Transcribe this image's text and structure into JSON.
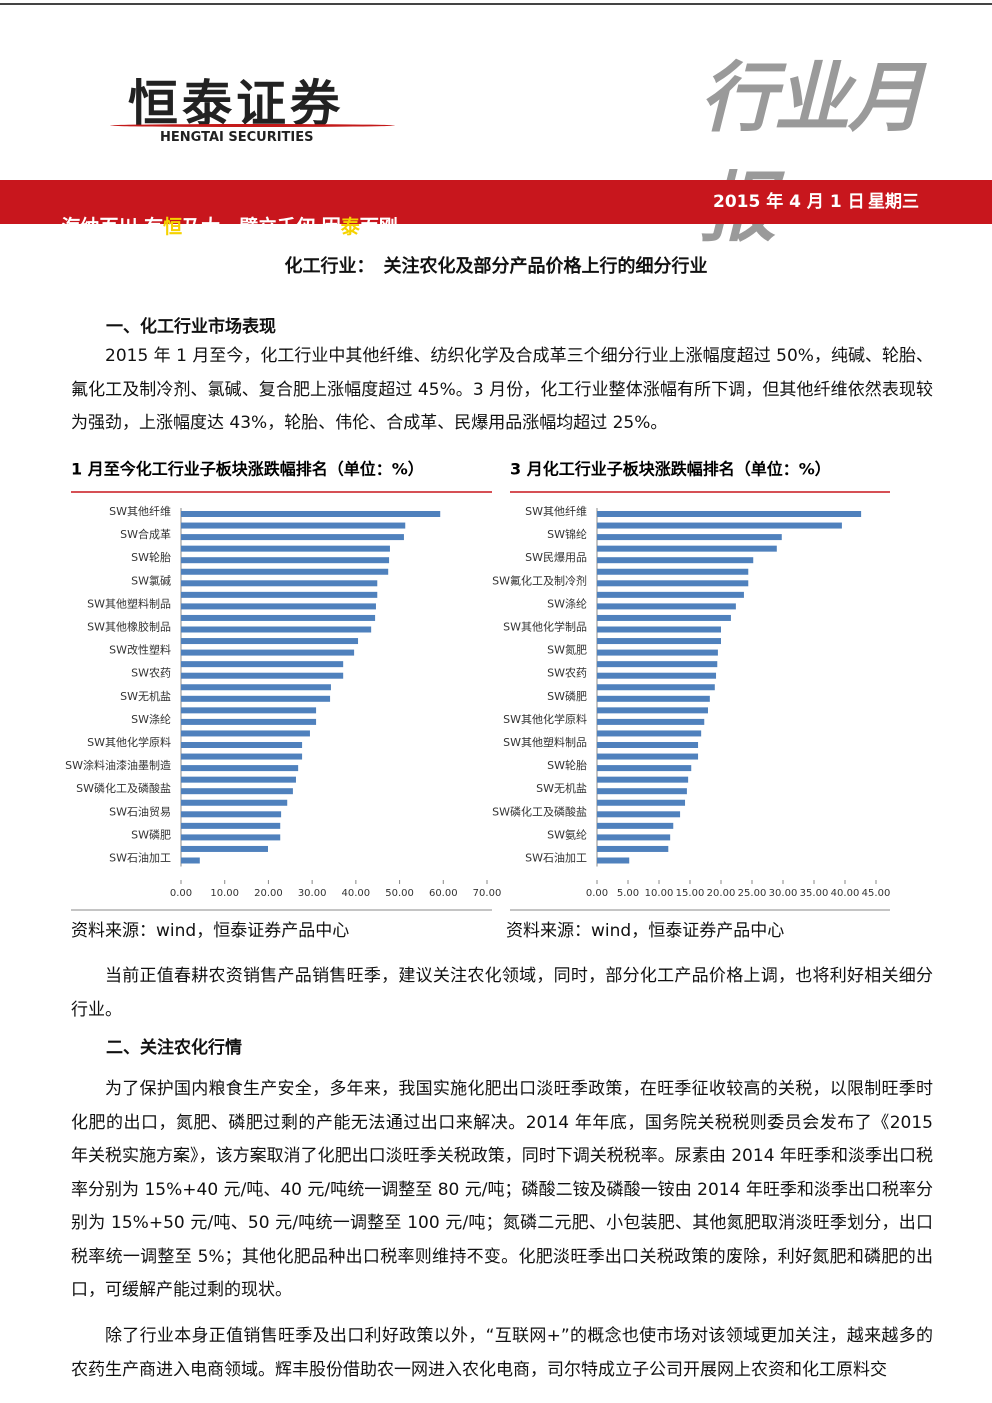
{
  "header": {
    "company": "恒泰证券",
    "company_en": "HENGTAI SECURITIES",
    "report_type": "行业月报",
    "slogan": [
      "海纳百川 有",
      "恒",
      "乃大　壁立千仞 因",
      "泰",
      "而刚"
    ],
    "date": "2015 年 4 月 1 日",
    "weekday": "星期三"
  },
  "title": "化工行业：　关注农化及部分产品价格上行的细分行业",
  "section1": {
    "heading": "一、化工行业市场表现",
    "paragraph": "2015 年 1 月至今，化工行业中其他纤维、纺织化学及合成革三个细分行业上涨幅度超过 50%，纯碱、轮胎、氟化工及制冷剂、氯碱、复合肥上涨幅度超过 45%。3 月份，化工行业整体涨幅有所下调，但其他纤维依然表现较为强劲，上涨幅度达 43%，轮胎、伟伦、合成革、民爆用品涨幅均超过 25%。",
    "paragraph2": "当前正值春耕农资销售产品销售旺季，建议关注农化领域，同时，部分化工产品价格上调，也将利好相关细分行业。"
  },
  "section2": {
    "heading": "二、关注农化行情",
    "paragraphs": [
      "为了保护国内粮食生产安全，多年来，我国实施化肥出口淡旺季政策，在旺季征收较高的关税，以限制旺季时化肥的出口，氮肥、磷肥过剩的产能无法通过出口来解决。2014 年年底，国务院关税税则委员会发布了《2015 年关税实施方案》，该方案取消了化肥出口淡旺季关税政策，同时下调关税税率。尿素由 2014 年旺季和淡季出口税率分别为 15%+40 元/吨、40 元/吨统一调整至 80 元/吨；磷酸二铵及磷酸一铵由 2014 年旺季和淡季出口税率分别为 15%+50 元/吨、50 元/吨统一调整至 100 元/吨；氮磷二元肥、小包装肥、其他氮肥取消淡旺季划分，出口税率统一调整至 5%；其他化肥品种出口税率则维持不变。化肥淡旺季出口关税政策的废除，利好氮肥和磷肥的出口，可缓解产能过剩的现状。",
      "除了行业本身正值销售旺季及出口利好政策以外，“互联网+”的概念也使市场对该领域更加关注，越来越多的农药生产商进入电商领域。辉丰股份借助农一网进入农化电商，司尔特成立子公司开展网上农资和化工原料交"
    ]
  },
  "chart_data": [
    {
      "type": "hbar",
      "title": "1 月至今化工行业子板块涨跌幅排名（单位：%）",
      "source": "资料来源：wind，恒泰证券产品中心",
      "color": "#4f81bd",
      "categories": [
        "SW其他纤维",
        null,
        "SW合成革",
        null,
        "SW轮胎",
        null,
        "SW氯碱",
        null,
        "SW其他塑料制品",
        null,
        "SW其他橡胶制品",
        null,
        "SW改性塑料",
        null,
        "SW农药",
        null,
        "SW无机盐",
        null,
        "SW涤纶",
        null,
        "SW其他化学原料",
        null,
        "SW涂料油漆油墨制造",
        null,
        "SW磷化工及磷酸盐",
        null,
        "SW石油贸易",
        null,
        "SW磷肥",
        null,
        "SW石油加工"
      ],
      "values": [
        59.3,
        51.3,
        51.0,
        47.8,
        47.6,
        47.4,
        44.9,
        44.9,
        44.6,
        44.4,
        43.5,
        40.5,
        39.6,
        37.1,
        37.1,
        34.3,
        34.1,
        30.9,
        30.9,
        29.5,
        27.7,
        27.7,
        26.8,
        26.3,
        25.6,
        24.3,
        22.9,
        22.7,
        22.7,
        19.9,
        4.3
      ],
      "xlim": [
        0,
        70
      ],
      "xticks": [
        {
          "value": 0,
          "label": "0.00"
        },
        {
          "value": 10,
          "label": "10.00"
        },
        {
          "value": 20,
          "label": "20.00"
        },
        {
          "value": 30,
          "label": "30.00"
        },
        {
          "value": 40,
          "label": "40.00"
        },
        {
          "value": 50,
          "label": "50.00"
        },
        {
          "value": 60,
          "label": "60.00"
        },
        {
          "value": 70,
          "label": "70.00"
        }
      ]
    },
    {
      "type": "hbar",
      "title": "3 月化工行业子板块涨跌幅排名（单位：%）",
      "source": "资料来源：wind，恒泰证券产品中心",
      "color": "#4f81bd",
      "categories": [
        "SW其他纤维",
        null,
        "SW锦纶",
        null,
        "SW民爆用品",
        null,
        "SW氟化工及制冷剂",
        null,
        "SW涤纶",
        null,
        "SW其他化学制品",
        null,
        "SW氮肥",
        null,
        "SW农药",
        null,
        "SW磷肥",
        null,
        "SW其他化学原料",
        null,
        "SW其他塑料制品",
        null,
        "SW轮胎",
        null,
        "SW无机盐",
        null,
        "SW磷化工及磷酸盐",
        null,
        "SW氨纶",
        null,
        "SW石油加工"
      ],
      "values": [
        42.6,
        39.5,
        29.8,
        29.0,
        25.2,
        24.4,
        24.4,
        23.7,
        22.4,
        21.6,
        20.0,
        20.0,
        19.5,
        19.4,
        19.2,
        19.0,
        18.2,
        17.9,
        17.3,
        16.8,
        16.3,
        16.3,
        15.2,
        14.7,
        14.5,
        14.2,
        13.4,
        12.3,
        11.8,
        11.5,
        5.2
      ],
      "xlim": [
        0,
        45
      ],
      "xticks": [
        {
          "value": 0,
          "label": "0.00"
        },
        {
          "value": 5,
          "label": "5.00"
        },
        {
          "value": 10,
          "label": "10.00"
        },
        {
          "value": 15,
          "label": "15.00"
        },
        {
          "value": 20,
          "label": "20.00"
        },
        {
          "value": 25,
          "label": "25.00"
        },
        {
          "value": 30,
          "label": "30.00"
        },
        {
          "value": 35,
          "label": "35.00"
        },
        {
          "value": 40,
          "label": "40.00"
        },
        {
          "value": 45,
          "label": "45.00"
        }
      ]
    }
  ]
}
